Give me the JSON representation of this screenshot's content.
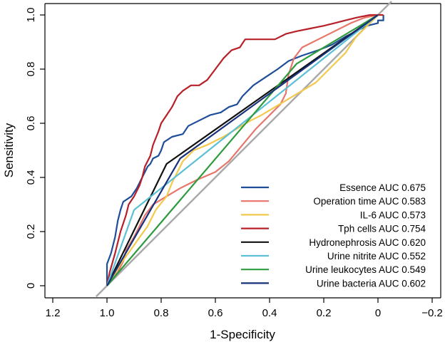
{
  "chart_data": {
    "type": "line",
    "title": "",
    "xlabel": "1-Specificity",
    "ylabel": "Sensitivity",
    "xlim": [
      1.2,
      -0.2
    ],
    "ylim": [
      0,
      1.0
    ],
    "xticks": [
      1.2,
      1.0,
      0.8,
      0.6,
      0.4,
      0.2,
      0,
      -0.2
    ],
    "xtick_labels": [
      "1.2",
      "1.0",
      "0.8",
      "0.6",
      "0.4",
      "0.2",
      "0",
      "−0.2"
    ],
    "yticks": [
      0,
      0.2,
      0.4,
      0.6,
      0.8,
      1.0
    ],
    "ytick_labels": [
      "0",
      "0.2",
      "0.4",
      "0.6",
      "0.8",
      "1.0"
    ],
    "legend_position": "bottom-right",
    "reference_line": {
      "name": "chance diagonal",
      "color": "#aaaaaa"
    },
    "series": [
      {
        "name": "Essence AUC 0.675",
        "color": "#1f4e99",
        "points": [
          [
            1.0,
            0.0
          ],
          [
            1.0,
            0.08
          ],
          [
            0.985,
            0.12
          ],
          [
            0.97,
            0.18
          ],
          [
            0.96,
            0.24
          ],
          [
            0.95,
            0.28
          ],
          [
            0.94,
            0.31
          ],
          [
            0.91,
            0.33
          ],
          [
            0.89,
            0.36
          ],
          [
            0.88,
            0.38
          ],
          [
            0.87,
            0.4
          ],
          [
            0.86,
            0.42
          ],
          [
            0.85,
            0.44
          ],
          [
            0.84,
            0.45
          ],
          [
            0.83,
            0.47
          ],
          [
            0.81,
            0.48
          ],
          [
            0.8,
            0.5
          ],
          [
            0.79,
            0.53
          ],
          [
            0.76,
            0.55
          ],
          [
            0.72,
            0.56
          ],
          [
            0.7,
            0.59
          ],
          [
            0.66,
            0.61
          ],
          [
            0.62,
            0.63
          ],
          [
            0.58,
            0.64
          ],
          [
            0.55,
            0.66
          ],
          [
            0.52,
            0.67
          ],
          [
            0.5,
            0.7
          ],
          [
            0.48,
            0.72
          ],
          [
            0.46,
            0.74
          ],
          [
            0.43,
            0.76
          ],
          [
            0.4,
            0.78
          ],
          [
            0.37,
            0.8
          ],
          [
            0.33,
            0.83
          ],
          [
            0.28,
            0.85
          ],
          [
            0.22,
            0.87
          ],
          [
            0.17,
            0.89
          ],
          [
            0.12,
            0.92
          ],
          [
            0.08,
            0.94
          ],
          [
            0.04,
            0.96
          ],
          [
            0.0,
            0.97
          ],
          [
            0.0,
            0.98
          ],
          [
            -0.02,
            0.98
          ],
          [
            -0.02,
            1.0
          ]
        ]
      },
      {
        "name": "Operation time AUC 0.583",
        "color": "#e8756b",
        "points": [
          [
            1.0,
            0.0
          ],
          [
            0.99,
            0.02
          ],
          [
            0.96,
            0.05
          ],
          [
            0.94,
            0.09
          ],
          [
            0.93,
            0.13
          ],
          [
            0.9,
            0.18
          ],
          [
            0.88,
            0.22
          ],
          [
            0.86,
            0.26
          ],
          [
            0.83,
            0.3
          ],
          [
            0.78,
            0.33
          ],
          [
            0.73,
            0.36
          ],
          [
            0.67,
            0.39
          ],
          [
            0.6,
            0.42
          ],
          [
            0.55,
            0.46
          ],
          [
            0.5,
            0.52
          ],
          [
            0.45,
            0.58
          ],
          [
            0.4,
            0.63
          ],
          [
            0.36,
            0.67
          ],
          [
            0.34,
            0.71
          ],
          [
            0.33,
            0.78
          ],
          [
            0.31,
            0.84
          ],
          [
            0.28,
            0.88
          ],
          [
            0.22,
            0.91
          ],
          [
            0.16,
            0.94
          ],
          [
            0.1,
            0.97
          ],
          [
            0.05,
            0.99
          ],
          [
            0.0,
            1.0
          ]
        ]
      },
      {
        "name": "IL-6 AUC 0.573",
        "color": "#f2c94c",
        "points": [
          [
            1.0,
            0.0
          ],
          [
            0.98,
            0.03
          ],
          [
            0.95,
            0.08
          ],
          [
            0.9,
            0.15
          ],
          [
            0.85,
            0.22
          ],
          [
            0.82,
            0.28
          ],
          [
            0.78,
            0.33
          ],
          [
            0.76,
            0.38
          ],
          [
            0.74,
            0.42
          ],
          [
            0.72,
            0.46
          ],
          [
            0.68,
            0.5
          ],
          [
            0.63,
            0.52
          ],
          [
            0.57,
            0.55
          ],
          [
            0.52,
            0.58
          ],
          [
            0.47,
            0.61
          ],
          [
            0.43,
            0.63
          ],
          [
            0.38,
            0.66
          ],
          [
            0.33,
            0.69
          ],
          [
            0.28,
            0.72
          ],
          [
            0.23,
            0.75
          ],
          [
            0.18,
            0.8
          ],
          [
            0.12,
            0.86
          ],
          [
            0.08,
            0.92
          ],
          [
            0.04,
            0.96
          ],
          [
            0.0,
            1.0
          ]
        ]
      },
      {
        "name": "Tph cells AUC 0.754",
        "color": "#b82028",
        "points": [
          [
            1.0,
            0.0
          ],
          [
            0.99,
            0.05
          ],
          [
            0.97,
            0.12
          ],
          [
            0.95,
            0.2
          ],
          [
            0.93,
            0.26
          ],
          [
            0.92,
            0.3
          ],
          [
            0.9,
            0.33
          ],
          [
            0.88,
            0.37
          ],
          [
            0.87,
            0.4
          ],
          [
            0.86,
            0.44
          ],
          [
            0.84,
            0.48
          ],
          [
            0.83,
            0.52
          ],
          [
            0.81,
            0.57
          ],
          [
            0.8,
            0.6
          ],
          [
            0.78,
            0.63
          ],
          [
            0.76,
            0.66
          ],
          [
            0.74,
            0.7
          ],
          [
            0.72,
            0.72
          ],
          [
            0.69,
            0.74
          ],
          [
            0.66,
            0.74
          ],
          [
            0.63,
            0.76
          ],
          [
            0.6,
            0.8
          ],
          [
            0.57,
            0.84
          ],
          [
            0.54,
            0.87
          ],
          [
            0.51,
            0.88
          ],
          [
            0.49,
            0.91
          ],
          [
            0.44,
            0.91
          ],
          [
            0.38,
            0.91
          ],
          [
            0.34,
            0.93
          ],
          [
            0.3,
            0.94
          ],
          [
            0.25,
            0.95
          ],
          [
            0.2,
            0.96
          ],
          [
            0.16,
            0.97
          ],
          [
            0.12,
            0.98
          ],
          [
            0.08,
            0.99
          ],
          [
            0.03,
            1.0
          ],
          [
            -0.02,
            1.0
          ]
        ]
      },
      {
        "name": "Hydronephrosis AUC 0.620",
        "color": "#111111",
        "points": [
          [
            1.0,
            0.0
          ],
          [
            0.78,
            0.45
          ],
          [
            0.0,
            1.0
          ]
        ]
      },
      {
        "name": "Urine nitrite AUC 0.552",
        "color": "#5bc0d6",
        "points": [
          [
            1.0,
            0.0
          ],
          [
            0.9,
            0.28
          ],
          [
            0.0,
            1.0
          ]
        ]
      },
      {
        "name": "Urine leukocytes AUC 0.549",
        "color": "#2e9b3e",
        "points": [
          [
            1.0,
            0.0
          ],
          [
            0.3,
            0.82
          ],
          [
            0.0,
            1.0
          ]
        ]
      },
      {
        "name": "Urine bacteria AUC 0.602",
        "color": "#17317a",
        "points": [
          [
            1.0,
            0.0
          ],
          [
            0.73,
            0.47
          ],
          [
            0.0,
            1.0
          ]
        ]
      }
    ]
  }
}
